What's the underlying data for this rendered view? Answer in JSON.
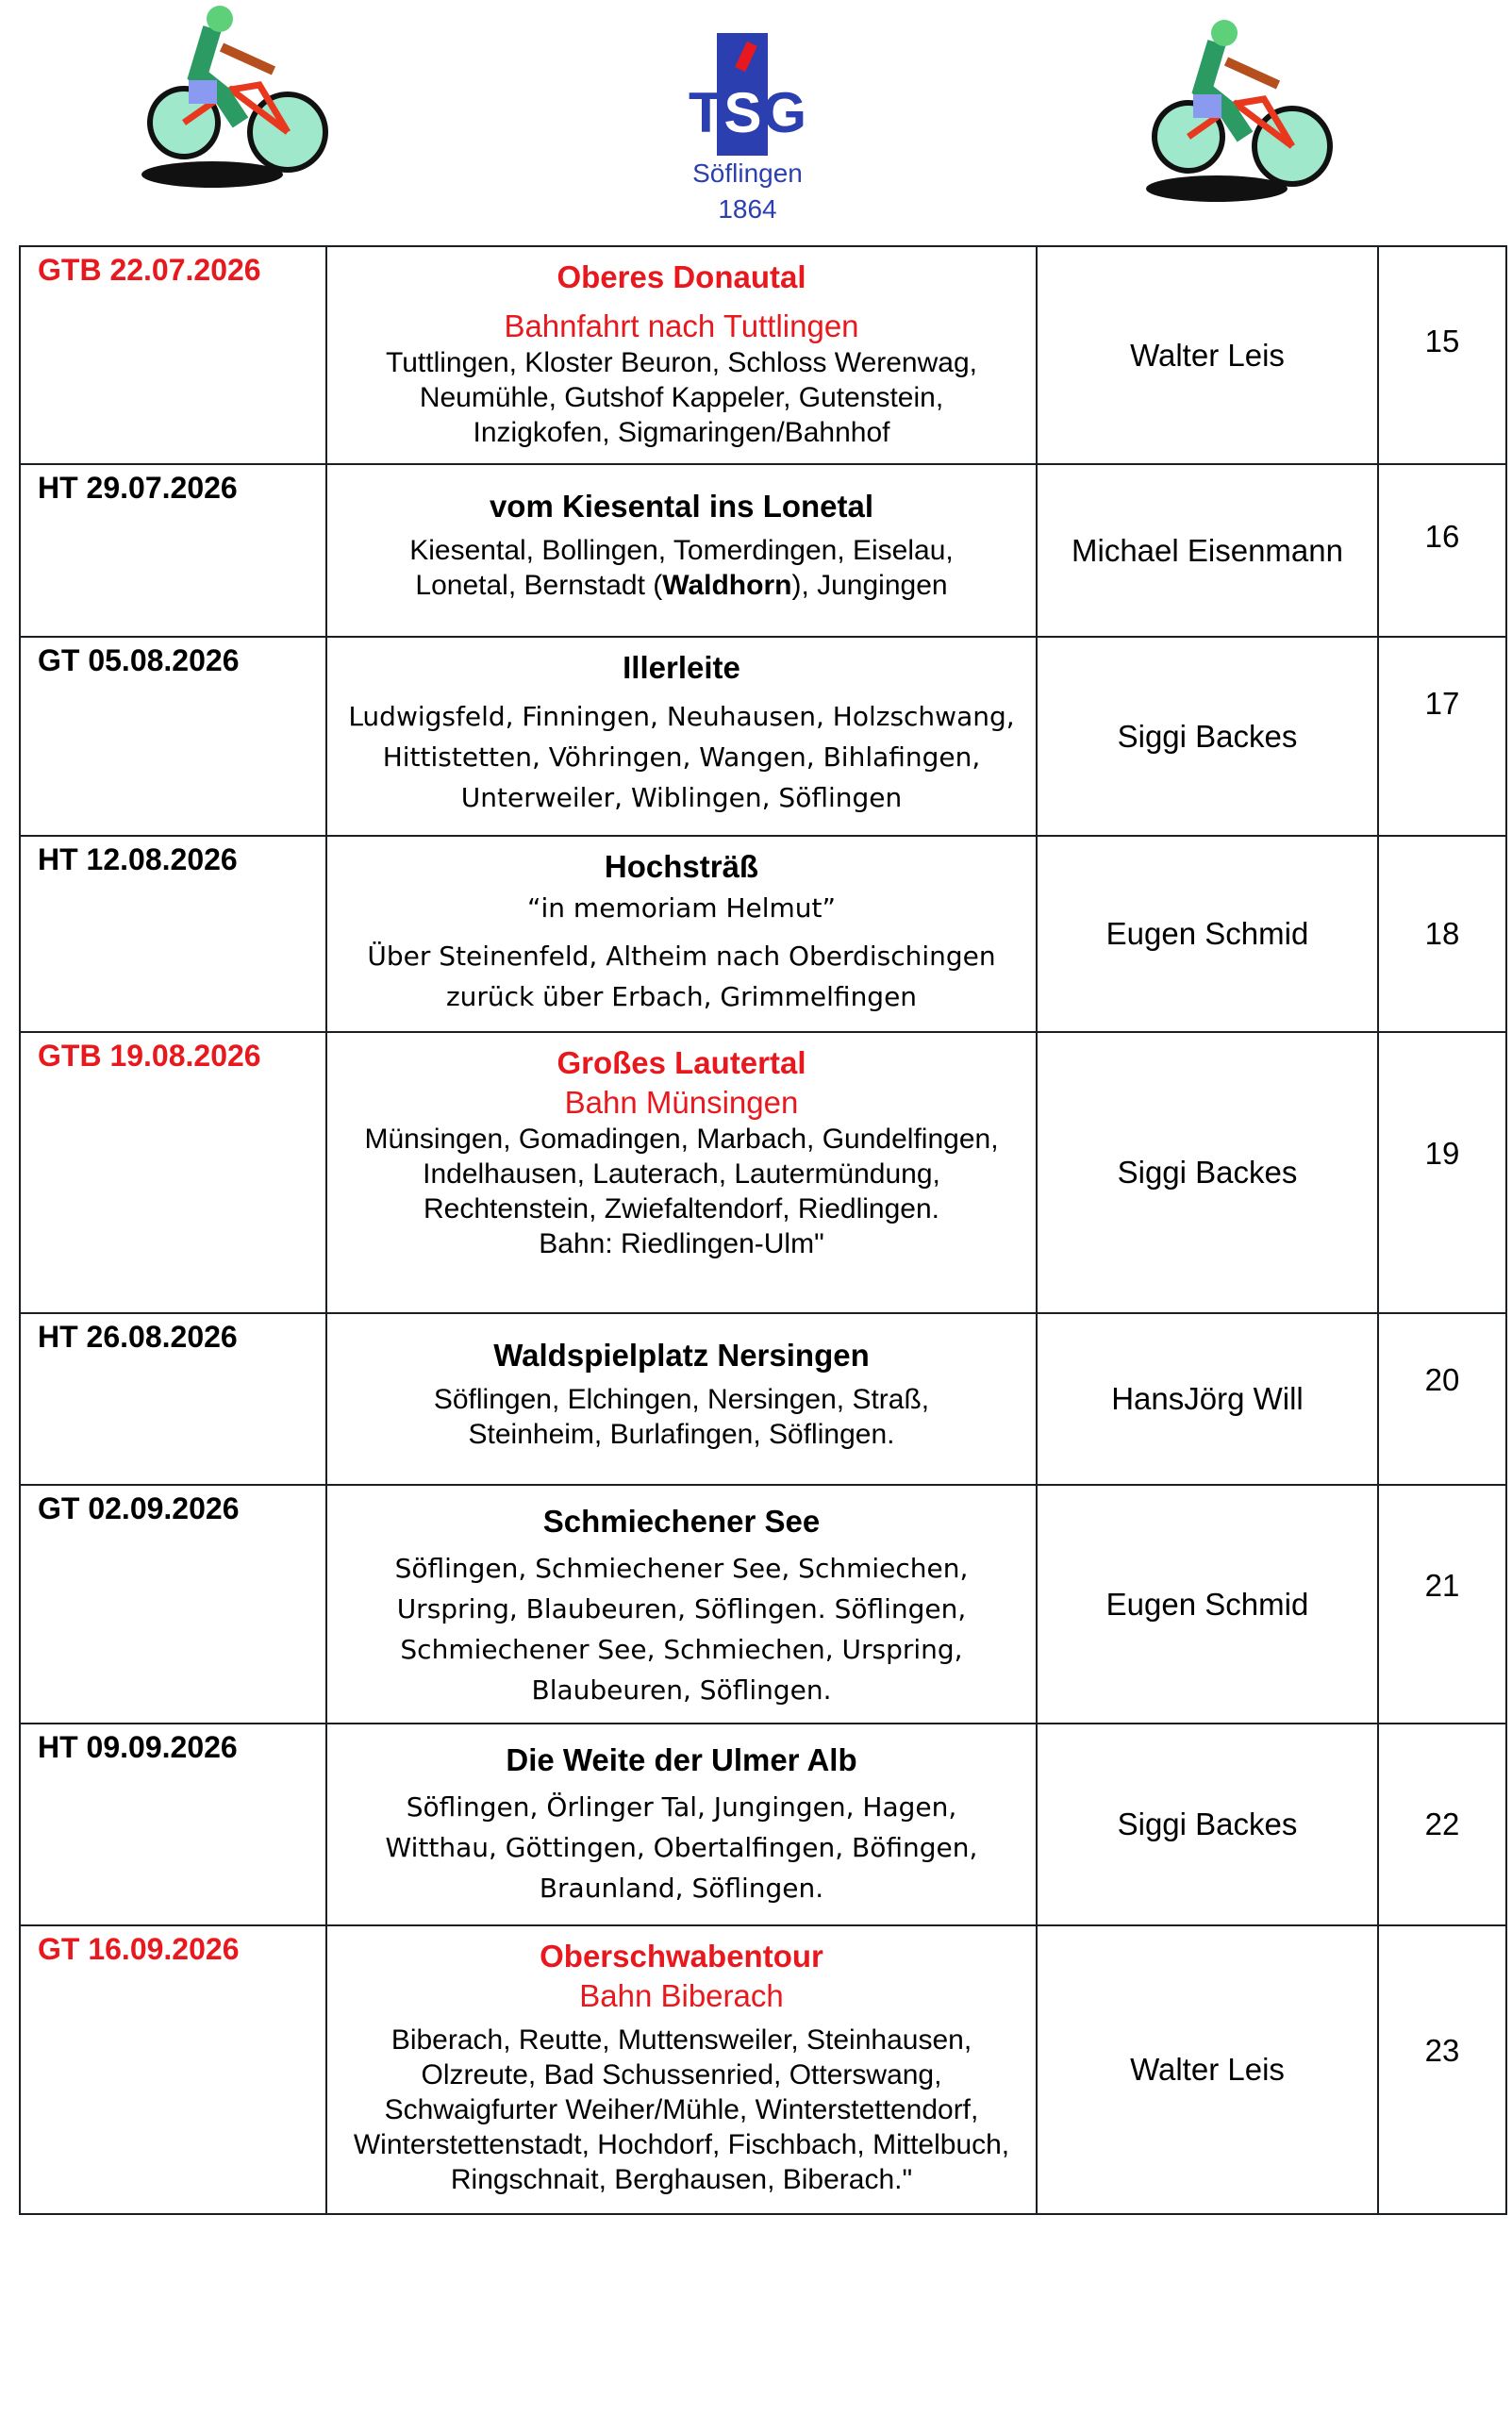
{
  "header": {
    "logo_letters": "TSG",
    "logo_place": "Söflingen",
    "logo_year": "1864",
    "left_icon": "cyclist-icon",
    "right_icon": "cyclist-icon"
  },
  "colors": {
    "highlight": "#e8191e",
    "logo_blue": "#2b3fb0"
  },
  "tours": [
    {
      "date": "GTB 22.07.2026",
      "red": true,
      "title": "Oberes Donautal",
      "subtitle": "Bahnfahrt nach Tuttlingen",
      "route": "Tuttlingen, Kloster Beuron, Schloss Werenwag, Neumühle, Gutshof Kappeler, Gutenstein, Inzigkofen, Sigmaringen/Bahnhof",
      "leader": "Walter Leis",
      "number": "15"
    },
    {
      "date": "HT 29.07.2026",
      "red": false,
      "title": "vom Kiesental ins Lonetal",
      "route_pre": "Kiesental, Bollingen, Tomerdingen, Eiselau, Lonetal, Bernstadt (",
      "route_bold": "Waldhorn",
      "route_post": "), Jungingen",
      "leader": "Michael Eisenmann",
      "number": "16"
    },
    {
      "date": "GT 05.08.2026",
      "red": false,
      "title": "Illerleite",
      "route": "Ludwigsfeld, Finningen, Neuhausen, Holzschwang, Hittistetten, Vöhringen, Wangen, Bihlafingen, Unterweiler, Wiblingen, Söflingen",
      "leader": "Siggi Backes",
      "number": "17"
    },
    {
      "date": "HT 12.08.2026",
      "red": false,
      "title": "Hochsträß",
      "subtitle": "“in memoriam Helmut”",
      "route": "Über Steinenfeld, Altheim nach Oberdischingen zurück über Erbach, Grimmelfingen",
      "leader": "Eugen Schmid",
      "number": "18"
    },
    {
      "date": "GTB 19.08.2026",
      "red": true,
      "title": "Großes Lautertal",
      "subtitle": "Bahn Münsingen",
      "route": "Münsingen, Gomadingen, Marbach, Gundelfingen, Indelhausen, Lauterach, Lautermündung, Rechtenstein, Zwiefaltendorf, Riedlingen.",
      "route2": "Bahn: Riedlingen-Ulm\"",
      "leader": "Siggi Backes",
      "number": "19"
    },
    {
      "date": "HT 26.08.2026",
      "red": false,
      "title": "Waldspielplatz Nersingen",
      "route": "Söflingen, Elchingen, Nersingen, Straß, Steinheim, Burlafingen, Söflingen.",
      "leader": "HansJörg Will",
      "number": "20"
    },
    {
      "date": "GT 02.09.2026",
      "red": false,
      "title": "Schmiechener See",
      "route": "Söflingen, Schmiechener See, Schmiechen, Urspring, Blaubeuren, Söflingen. Söflingen, Schmiechener See, Schmiechen, Urspring, Blaubeuren, Söflingen.",
      "leader": "Eugen Schmid",
      "number": "21"
    },
    {
      "date": "HT 09.09.2026",
      "red": false,
      "title": "Die Weite der Ulmer Alb",
      "route": "Söflingen, Örlinger Tal, Jungingen, Hagen, Witthau, Göttingen, Obertalfingen, Böfingen, Braunland, Söflingen.",
      "leader": "Siggi Backes",
      "number": "22"
    },
    {
      "date": "GT 16.09.2026",
      "red": true,
      "title": "Oberschwabentour",
      "subtitle": "Bahn Biberach",
      "route": "Biberach, Reutte, Muttensweiler, Steinhausen, Olzreute, Bad Schussenried, Otterswang, Schwaigfurter Weiher/Mühle, Winterstettendorf, Winterstettenstadt, Hochdorf, Fischbach, Mittelbuch, Ringschnait, Berghausen, Biberach.\"",
      "leader": "Walter Leis",
      "number": "23"
    }
  ]
}
